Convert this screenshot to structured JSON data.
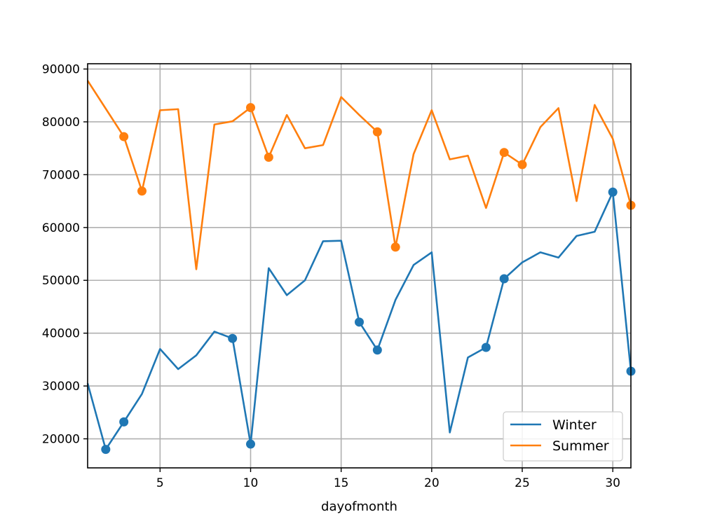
{
  "chart_data": {
    "type": "line",
    "title": "",
    "xlabel": "dayofmonth",
    "ylabel": "",
    "xlim": [
      1,
      31
    ],
    "ylim": [
      14500,
      91000
    ],
    "xticks": [
      5,
      10,
      15,
      20,
      25,
      30
    ],
    "yticks": [
      20000,
      30000,
      40000,
      50000,
      60000,
      70000,
      80000,
      90000
    ],
    "grid": true,
    "legend_position": "lower-right",
    "x": [
      1,
      2,
      3,
      4,
      5,
      6,
      7,
      8,
      9,
      10,
      11,
      12,
      13,
      14,
      15,
      16,
      17,
      18,
      19,
      20,
      21,
      22,
      23,
      24,
      25,
      26,
      27,
      28,
      29,
      30,
      31
    ],
    "series": [
      {
        "name": "Winter",
        "color": "#1f77b4",
        "values": [
          30500,
          18000,
          23200,
          28500,
          37000,
          33200,
          35800,
          40300,
          39000,
          19000,
          52300,
          47200,
          50000,
          57400,
          57500,
          42100,
          36800,
          46300,
          52900,
          55300,
          21200,
          35400,
          37300,
          50300,
          53400,
          55300,
          54300,
          58400,
          59200,
          66700,
          32800
        ],
        "markers_x": [
          2,
          3,
          9,
          10,
          16,
          17,
          23,
          24,
          30,
          31
        ]
      },
      {
        "name": "Summer",
        "color": "#ff7f0e",
        "values": [
          87800,
          82500,
          77200,
          66900,
          82200,
          82400,
          52100,
          79500,
          80100,
          82700,
          73300,
          81300,
          75000,
          75600,
          84700,
          81300,
          78100,
          56300,
          73900,
          82200,
          72900,
          73600,
          63700,
          74200,
          71900,
          79000,
          82600,
          65000,
          83200,
          76800,
          64200
        ],
        "markers_x": [
          3,
          4,
          10,
          11,
          17,
          18,
          24,
          25,
          31
        ]
      }
    ]
  }
}
